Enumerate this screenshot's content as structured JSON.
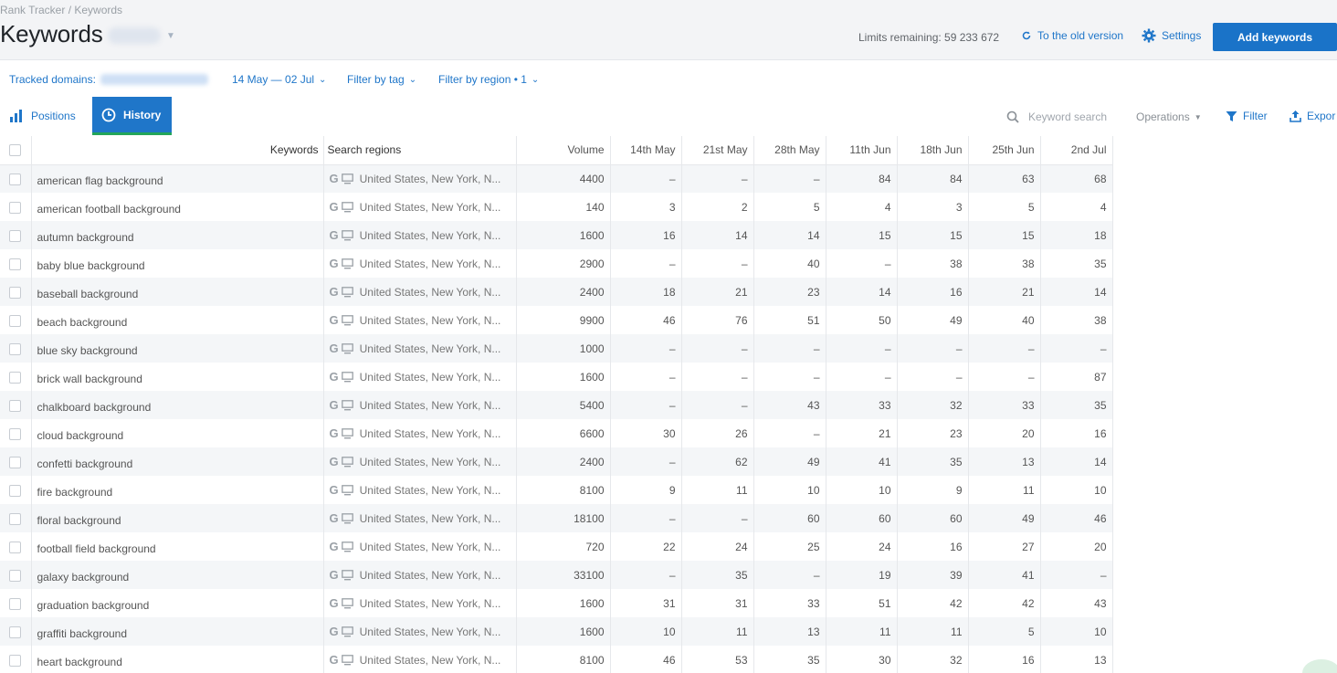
{
  "header": {
    "breadcrumb": "Rank Tracker / Keywords",
    "title": "Keywords",
    "limits": "Limits remaining: 59 233 672",
    "old_version": "To the old version",
    "settings": "Settings",
    "add_keywords": "Add keywords"
  },
  "filters": {
    "tracked_domains_label": "Tracked domains:",
    "date_range": "14 May — 02 Jul",
    "filter_by_tag": "Filter by tag",
    "filter_by_region": "Filter by region • 1"
  },
  "tabs": {
    "positions": "Positions",
    "history": "History"
  },
  "toolbar": {
    "keyword_search_placeholder": "Keyword search",
    "operations": "Operations",
    "filter": "Filter",
    "export": "Expor"
  },
  "colors": {
    "accent": "#1f76c9",
    "button": "#1a73c8",
    "tab_underline": "#23a55a"
  },
  "table": {
    "headers": {
      "keywords": "Keywords",
      "regions": "Search regions",
      "volume": "Volume",
      "dates": [
        "14th May",
        "21st May",
        "28th May",
        "11th Jun",
        "18th Jun",
        "25th Jun",
        "2nd Jul"
      ]
    },
    "rows": [
      {
        "keyword": "american flag background",
        "region": "United States, New York, N...",
        "volume": "4400",
        "positions": [
          "–",
          "–",
          "–",
          "84",
          "84",
          "63",
          "68"
        ]
      },
      {
        "keyword": "american football background",
        "region": "United States, New York, N...",
        "volume": "140",
        "positions": [
          "3",
          "2",
          "5",
          "4",
          "3",
          "5",
          "4"
        ]
      },
      {
        "keyword": "autumn background",
        "region": "United States, New York, N...",
        "volume": "1600",
        "positions": [
          "16",
          "14",
          "14",
          "15",
          "15",
          "15",
          "18"
        ]
      },
      {
        "keyword": "baby blue background",
        "region": "United States, New York, N...",
        "volume": "2900",
        "positions": [
          "–",
          "–",
          "40",
          "–",
          "38",
          "38",
          "35"
        ]
      },
      {
        "keyword": "baseball background",
        "region": "United States, New York, N...",
        "volume": "2400",
        "positions": [
          "18",
          "21",
          "23",
          "14",
          "16",
          "21",
          "14"
        ]
      },
      {
        "keyword": "beach background",
        "region": "United States, New York, N...",
        "volume": "9900",
        "positions": [
          "46",
          "76",
          "51",
          "50",
          "49",
          "40",
          "38"
        ]
      },
      {
        "keyword": "blue sky background",
        "region": "United States, New York, N...",
        "volume": "1000",
        "positions": [
          "–",
          "–",
          "–",
          "–",
          "–",
          "–",
          "–"
        ]
      },
      {
        "keyword": "brick wall background",
        "region": "United States, New York, N...",
        "volume": "1600",
        "positions": [
          "–",
          "–",
          "–",
          "–",
          "–",
          "–",
          "87"
        ]
      },
      {
        "keyword": "chalkboard background",
        "region": "United States, New York, N...",
        "volume": "5400",
        "positions": [
          "–",
          "–",
          "43",
          "33",
          "32",
          "33",
          "35"
        ]
      },
      {
        "keyword": "cloud background",
        "region": "United States, New York, N...",
        "volume": "6600",
        "positions": [
          "30",
          "26",
          "–",
          "21",
          "23",
          "20",
          "16"
        ]
      },
      {
        "keyword": "confetti background",
        "region": "United States, New York, N...",
        "volume": "2400",
        "positions": [
          "–",
          "62",
          "49",
          "41",
          "35",
          "13",
          "14"
        ]
      },
      {
        "keyword": "fire background",
        "region": "United States, New York, N...",
        "volume": "8100",
        "positions": [
          "9",
          "11",
          "10",
          "10",
          "9",
          "11",
          "10"
        ]
      },
      {
        "keyword": "floral background",
        "region": "United States, New York, N...",
        "volume": "18100",
        "positions": [
          "–",
          "–",
          "60",
          "60",
          "60",
          "49",
          "46"
        ]
      },
      {
        "keyword": "football field background",
        "region": "United States, New York, N...",
        "volume": "720",
        "positions": [
          "22",
          "24",
          "25",
          "24",
          "16",
          "27",
          "20"
        ]
      },
      {
        "keyword": "galaxy background",
        "region": "United States, New York, N...",
        "volume": "33100",
        "positions": [
          "–",
          "35",
          "–",
          "19",
          "39",
          "41",
          "–"
        ]
      },
      {
        "keyword": "graduation background",
        "region": "United States, New York, N...",
        "volume": "1600",
        "positions": [
          "31",
          "31",
          "33",
          "51",
          "42",
          "42",
          "43"
        ]
      },
      {
        "keyword": "graffiti background",
        "region": "United States, New York, N...",
        "volume": "1600",
        "positions": [
          "10",
          "11",
          "13",
          "11",
          "11",
          "5",
          "10"
        ]
      },
      {
        "keyword": "heart background",
        "region": "United States, New York, N...",
        "volume": "8100",
        "positions": [
          "46",
          "53",
          "35",
          "30",
          "32",
          "16",
          "13"
        ]
      }
    ]
  }
}
